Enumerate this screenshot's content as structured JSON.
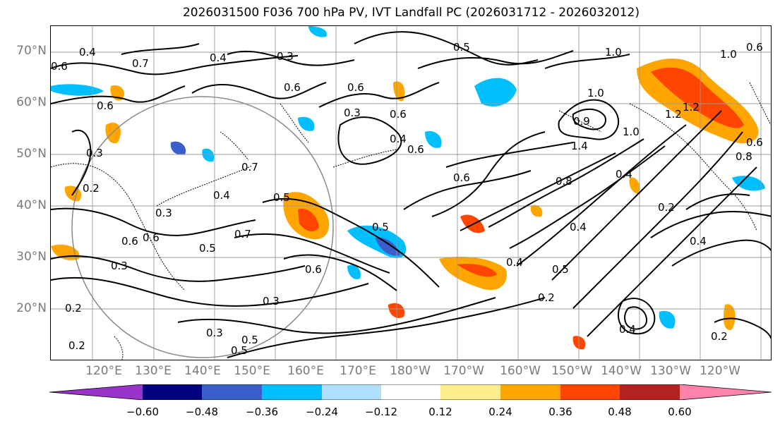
{
  "title": "2026031500 F036 700 hPa PV, IVT Landfall PC (2026031712 - 2026032012)",
  "lat_labels": [
    "70°N",
    "60°N",
    "50°N",
    "40°N",
    "30°N",
    "20°N"
  ],
  "lon_labels": [
    "120°E",
    "130°E",
    "140°E",
    "150°E",
    "160°E",
    "170°E",
    "180°W",
    "170°W",
    "160°W",
    "150°W",
    "140°W",
    "130°W",
    "120°W"
  ],
  "colorbar": {
    "colors": [
      "#9933cc",
      "#000080",
      "#3a5fcd",
      "#00bfff",
      "#b0e2ff",
      "#ffffff",
      "#ffec8b",
      "#ffa500",
      "#ff4500",
      "#b22222",
      "#ff82ab"
    ],
    "tick_labels": [
      "−0.60",
      "−0.48",
      "−0.36",
      "−0.24",
      "−0.12",
      "0.12",
      "0.24",
      "0.36",
      "0.48",
      "0.60"
    ]
  },
  "contour_labels": [
    "0.4",
    "0.6",
    "0.7",
    "0.3",
    "0.4",
    "0.3",
    "0.6",
    "0.6",
    "0.5",
    "0.6",
    "0.7",
    "1.0",
    "0.6",
    "0.6",
    "0.3",
    "0.5",
    "0.4",
    "0.6",
    "0.5",
    "0.7",
    "0.3",
    "0.6",
    "0.5",
    "0.6",
    "0.4",
    "0.2",
    "0.5",
    "0.5",
    "0.2",
    "0.8",
    "1.0",
    "1.0",
    "0.9",
    "1.2",
    "1.4",
    "1.0",
    "0.8",
    "0.4",
    "0.2",
    "0.4",
    "0.6",
    "0.2",
    "0.3",
    "0.2",
    "0.4",
    "0.3",
    "0.5",
    "0.3",
    "0.2",
    "0.4",
    "0.6",
    "1.2",
    "0.4",
    "0.6"
  ]
}
